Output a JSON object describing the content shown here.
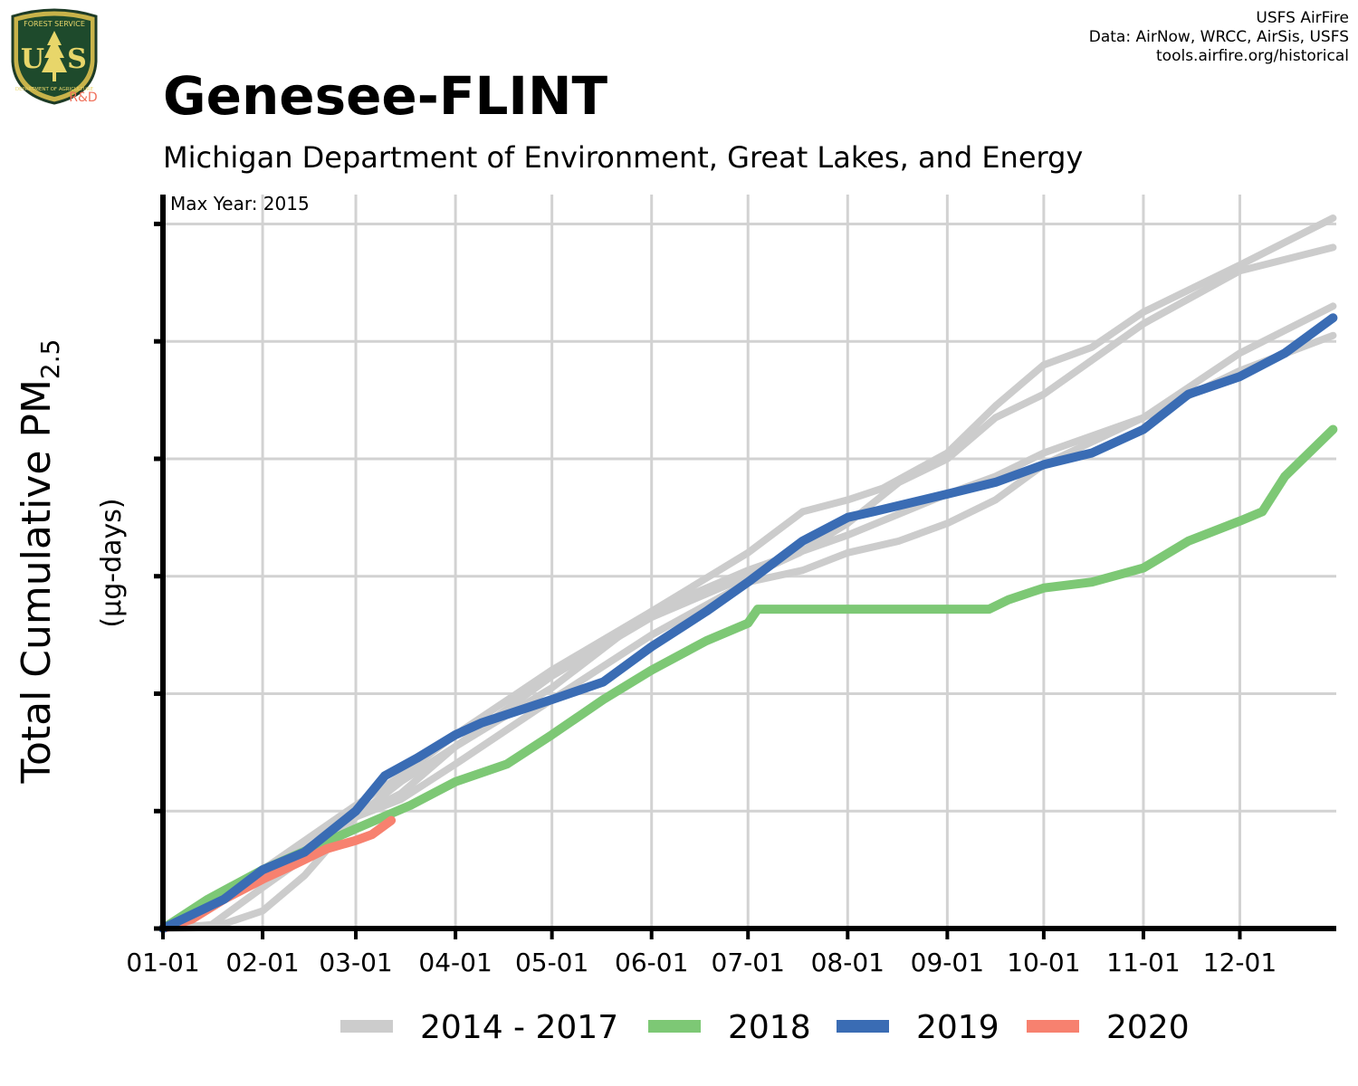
{
  "header": {
    "title": "Genesee-FLINT",
    "subtitle": "Michigan Department of Environment, Great Lakes, and Energy",
    "credits": [
      "USFS AirFire",
      "Data: AirNow, WRCC, AirSis, USFS",
      "tools.airfire.org/historical"
    ],
    "logo_text": [
      "FOREST SERVICE",
      "U",
      "S",
      "DEPARTMENT OF AGRICULTURE"
    ],
    "logo_rd_label": "R&D"
  },
  "colors": {
    "historical": "#cccccc",
    "y2018": "#7dc875",
    "y2019": "#3a6cb4",
    "y2020": "#f7816f",
    "grid": "#d2d2d2",
    "axis": "#000000",
    "logo_rd": "#f0705a"
  },
  "chart_data": {
    "type": "line",
    "annotation": "Max Year: 2015",
    "ylabel_main": "Total Cumulative PM",
    "ylabel_sub": "2.5",
    "ylabel_units": "(µg-days)",
    "x_unit": "day of year",
    "xlim": [
      1,
      366
    ],
    "ylim": [
      0,
      6.25
    ],
    "y_ticks_shown": false,
    "x_ticks": [
      {
        "label": "01-01",
        "day": 1
      },
      {
        "label": "02-01",
        "day": 32
      },
      {
        "label": "03-01",
        "day": 61
      },
      {
        "label": "04-01",
        "day": 92
      },
      {
        "label": "05-01",
        "day": 122
      },
      {
        "label": "06-01",
        "day": 153
      },
      {
        "label": "07-01",
        "day": 183
      },
      {
        "label": "08-01",
        "day": 214
      },
      {
        "label": "09-01",
        "day": 245
      },
      {
        "label": "10-01",
        "day": 275
      },
      {
        "label": "11-01",
        "day": 306
      },
      {
        "label": "12-01",
        "day": 336
      }
    ],
    "y_gridlines": [
      0,
      1,
      2,
      3,
      4,
      5,
      6
    ],
    "grid": true,
    "legend_position": "bottom",
    "legend": [
      {
        "label": "2014 - 2017",
        "color_key": "historical"
      },
      {
        "label": "2018",
        "color_key": "y2018"
      },
      {
        "label": "2019",
        "color_key": "y2019"
      },
      {
        "label": "2020",
        "color_key": "y2020"
      }
    ],
    "series": [
      {
        "group": "2014 - 2017",
        "color_key": "historical",
        "width": 8,
        "points": [
          [
            1,
            0.0
          ],
          [
            20,
            0.04
          ],
          [
            32,
            0.15
          ],
          [
            45,
            0.45
          ],
          [
            61,
            0.95
          ],
          [
            75,
            1.15
          ],
          [
            92,
            1.55
          ],
          [
            122,
            2.15
          ],
          [
            153,
            2.65
          ],
          [
            183,
            3.0
          ],
          [
            199,
            3.2
          ],
          [
            214,
            3.45
          ],
          [
            230,
            3.8
          ],
          [
            245,
            4.0
          ],
          [
            260,
            4.35
          ],
          [
            275,
            4.55
          ],
          [
            306,
            5.15
          ],
          [
            336,
            5.6
          ],
          [
            365,
            5.8
          ]
        ]
      },
      {
        "group": "2014 - 2017",
        "color_key": "historical",
        "width": 8,
        "points": [
          [
            1,
            0.0
          ],
          [
            15,
            0.01
          ],
          [
            32,
            0.35
          ],
          [
            50,
            0.7
          ],
          [
            61,
            0.95
          ],
          [
            75,
            1.25
          ],
          [
            92,
            1.55
          ],
          [
            122,
            2.05
          ],
          [
            153,
            2.7
          ],
          [
            183,
            3.2
          ],
          [
            200,
            3.55
          ],
          [
            214,
            3.65
          ],
          [
            225,
            3.75
          ],
          [
            245,
            4.05
          ],
          [
            260,
            4.45
          ],
          [
            275,
            4.8
          ],
          [
            290,
            4.95
          ],
          [
            306,
            5.25
          ],
          [
            336,
            5.65
          ],
          [
            365,
            6.05
          ]
        ]
      },
      {
        "group": "2014 - 2017",
        "color_key": "historical",
        "width": 8,
        "points": [
          [
            1,
            0.0
          ],
          [
            32,
            0.5
          ],
          [
            61,
            1.05
          ],
          [
            75,
            1.3
          ],
          [
            92,
            1.65
          ],
          [
            122,
            2.2
          ],
          [
            153,
            2.7
          ],
          [
            183,
            3.05
          ],
          [
            214,
            3.35
          ],
          [
            245,
            3.7
          ],
          [
            260,
            3.85
          ],
          [
            275,
            4.05
          ],
          [
            306,
            4.35
          ],
          [
            336,
            4.9
          ],
          [
            365,
            5.3
          ]
        ]
      },
      {
        "group": "2014 - 2017",
        "color_key": "historical",
        "width": 8,
        "points": [
          [
            1,
            0.0
          ],
          [
            32,
            0.45
          ],
          [
            61,
            0.95
          ],
          [
            75,
            1.1
          ],
          [
            92,
            1.4
          ],
          [
            122,
            1.95
          ],
          [
            153,
            2.5
          ],
          [
            183,
            2.95
          ],
          [
            200,
            3.05
          ],
          [
            214,
            3.2
          ],
          [
            230,
            3.3
          ],
          [
            245,
            3.45
          ],
          [
            260,
            3.65
          ],
          [
            275,
            3.95
          ],
          [
            306,
            4.35
          ],
          [
            336,
            4.75
          ],
          [
            365,
            5.05
          ]
        ]
      },
      {
        "group": "2018",
        "color_key": "y2018",
        "width": 10,
        "points": [
          [
            1,
            0.0
          ],
          [
            15,
            0.25
          ],
          [
            32,
            0.5
          ],
          [
            61,
            0.85
          ],
          [
            78,
            1.05
          ],
          [
            92,
            1.25
          ],
          [
            108,
            1.4
          ],
          [
            122,
            1.65
          ],
          [
            138,
            1.95
          ],
          [
            153,
            2.2
          ],
          [
            170,
            2.45
          ],
          [
            183,
            2.6
          ],
          [
            186,
            2.72
          ],
          [
            210,
            2.72
          ],
          [
            230,
            2.72
          ],
          [
            258,
            2.72
          ],
          [
            264,
            2.8
          ],
          [
            275,
            2.9
          ],
          [
            290,
            2.95
          ],
          [
            306,
            3.07
          ],
          [
            320,
            3.3
          ],
          [
            336,
            3.47
          ],
          [
            343,
            3.55
          ],
          [
            350,
            3.85
          ],
          [
            365,
            4.25
          ]
        ]
      },
      {
        "group": "2019",
        "color_key": "y2019",
        "width": 10,
        "points": [
          [
            1,
            0.0
          ],
          [
            20,
            0.25
          ],
          [
            32,
            0.5
          ],
          [
            45,
            0.65
          ],
          [
            61,
            1.0
          ],
          [
            70,
            1.3
          ],
          [
            80,
            1.45
          ],
          [
            92,
            1.65
          ],
          [
            100,
            1.75
          ],
          [
            122,
            1.95
          ],
          [
            138,
            2.1
          ],
          [
            153,
            2.4
          ],
          [
            170,
            2.7
          ],
          [
            183,
            2.95
          ],
          [
            200,
            3.3
          ],
          [
            214,
            3.5
          ],
          [
            222,
            3.55
          ],
          [
            245,
            3.7
          ],
          [
            260,
            3.8
          ],
          [
            275,
            3.95
          ],
          [
            290,
            4.05
          ],
          [
            306,
            4.25
          ],
          [
            320,
            4.55
          ],
          [
            336,
            4.7
          ],
          [
            350,
            4.9
          ],
          [
            365,
            5.2
          ]
        ]
      },
      {
        "group": "2020",
        "color_key": "y2020",
        "width": 10,
        "points": [
          [
            1,
            0.0
          ],
          [
            10,
            0.08
          ],
          [
            20,
            0.25
          ],
          [
            32,
            0.42
          ],
          [
            40,
            0.52
          ],
          [
            52,
            0.68
          ],
          [
            61,
            0.75
          ],
          [
            66,
            0.8
          ],
          [
            72,
            0.92
          ]
        ]
      }
    ]
  }
}
